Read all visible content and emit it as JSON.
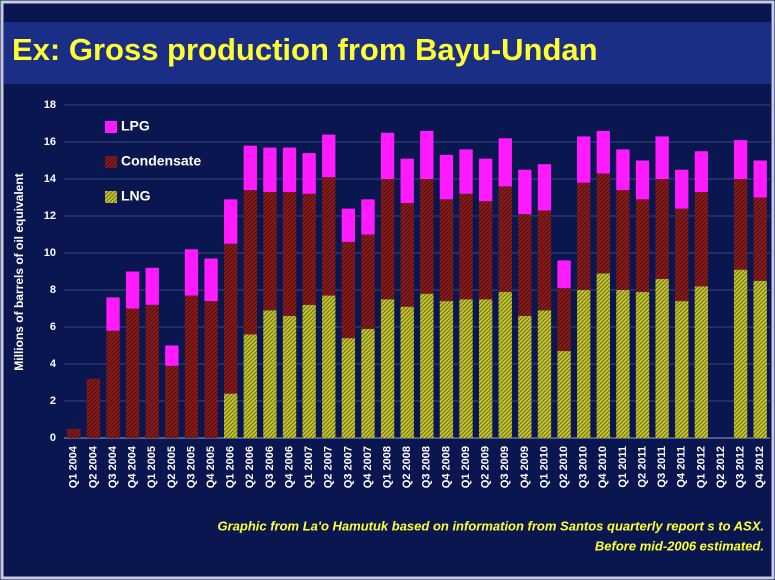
{
  "chart_data": {
    "type": "stacked_bar",
    "title": "Ex: Gross production from Bayu-Undan",
    "y_label": "Millions of barrels of oil equivalent",
    "footnote": [
      "Graphic from La'o Hamutuk based on information  from Santos quarterly  report s to ASX.",
      "Before mid-2006 estimated."
    ],
    "categories": [
      "Q1 2004",
      "Q2 2004",
      "Q3 2004",
      "Q4 2004",
      "Q1 2005",
      "Q2 2005",
      "Q3 2005",
      "Q4 2005",
      "Q1 2006",
      "Q2 2006",
      "Q3 2006",
      "Q4 2006",
      "Q1 2007",
      "Q2 2007",
      "Q3 2007",
      "Q4 2007",
      "Q1 2008",
      "Q2 2008",
      "Q3 2008",
      "Q4 2008",
      "Q1 2009",
      "Q2 2009",
      "Q3 2009",
      "Q4 2009",
      "Q1 2010",
      "Q2 2010",
      "Q3 2010",
      "Q4 2010",
      "Q1 2011",
      "Q2 2011",
      "Q3 2011",
      "Q4 2011",
      "Q1 2012",
      "Q2 2012",
      "Q3 2012",
      "Q4 2012"
    ],
    "series": [
      {
        "name": "LNG",
        "color": "#c9c830",
        "values": [
          0,
          0,
          0,
          0,
          0,
          0,
          0,
          0,
          2.4,
          5.6,
          6.9,
          6.6,
          7.2,
          7.7,
          5.4,
          5.9,
          7.5,
          7.1,
          7.8,
          7.4,
          7.5,
          7.5,
          7.9,
          6.6,
          6.9,
          4.7,
          8.0,
          8.9,
          8.0,
          7.9,
          8.6,
          7.4,
          8.2,
          null,
          9.1,
          8.5
        ]
      },
      {
        "name": "Condensate",
        "color": "#8c1c1c",
        "values": [
          0.5,
          3.2,
          5.8,
          7.0,
          7.2,
          3.9,
          7.7,
          7.4,
          8.1,
          7.8,
          6.4,
          6.7,
          6.0,
          6.4,
          5.2,
          5.1,
          6.5,
          5.6,
          6.2,
          5.5,
          5.7,
          5.3,
          5.7,
          5.5,
          5.4,
          3.4,
          5.8,
          5.4,
          5.4,
          5.0,
          5.4,
          5.0,
          5.1,
          null,
          4.9,
          4.5
        ]
      },
      {
        "name": "LPG",
        "color": "#ff1aff",
        "values": [
          0,
          0,
          1.8,
          2.0,
          2.0,
          1.1,
          2.5,
          2.3,
          2.4,
          2.4,
          2.4,
          2.4,
          2.2,
          2.3,
          1.8,
          1.9,
          2.5,
          2.4,
          2.6,
          2.4,
          2.4,
          2.3,
          2.6,
          2.4,
          2.5,
          1.5,
          2.5,
          2.3,
          2.2,
          2.1,
          2.3,
          2.1,
          2.2,
          null,
          2.1,
          2.0
        ]
      }
    ],
    "ylim": [
      0,
      18
    ],
    "yticks": [
      0,
      2,
      4,
      6,
      8,
      10,
      12,
      14,
      16,
      18
    ],
    "grid": true,
    "legend": "top-left"
  }
}
